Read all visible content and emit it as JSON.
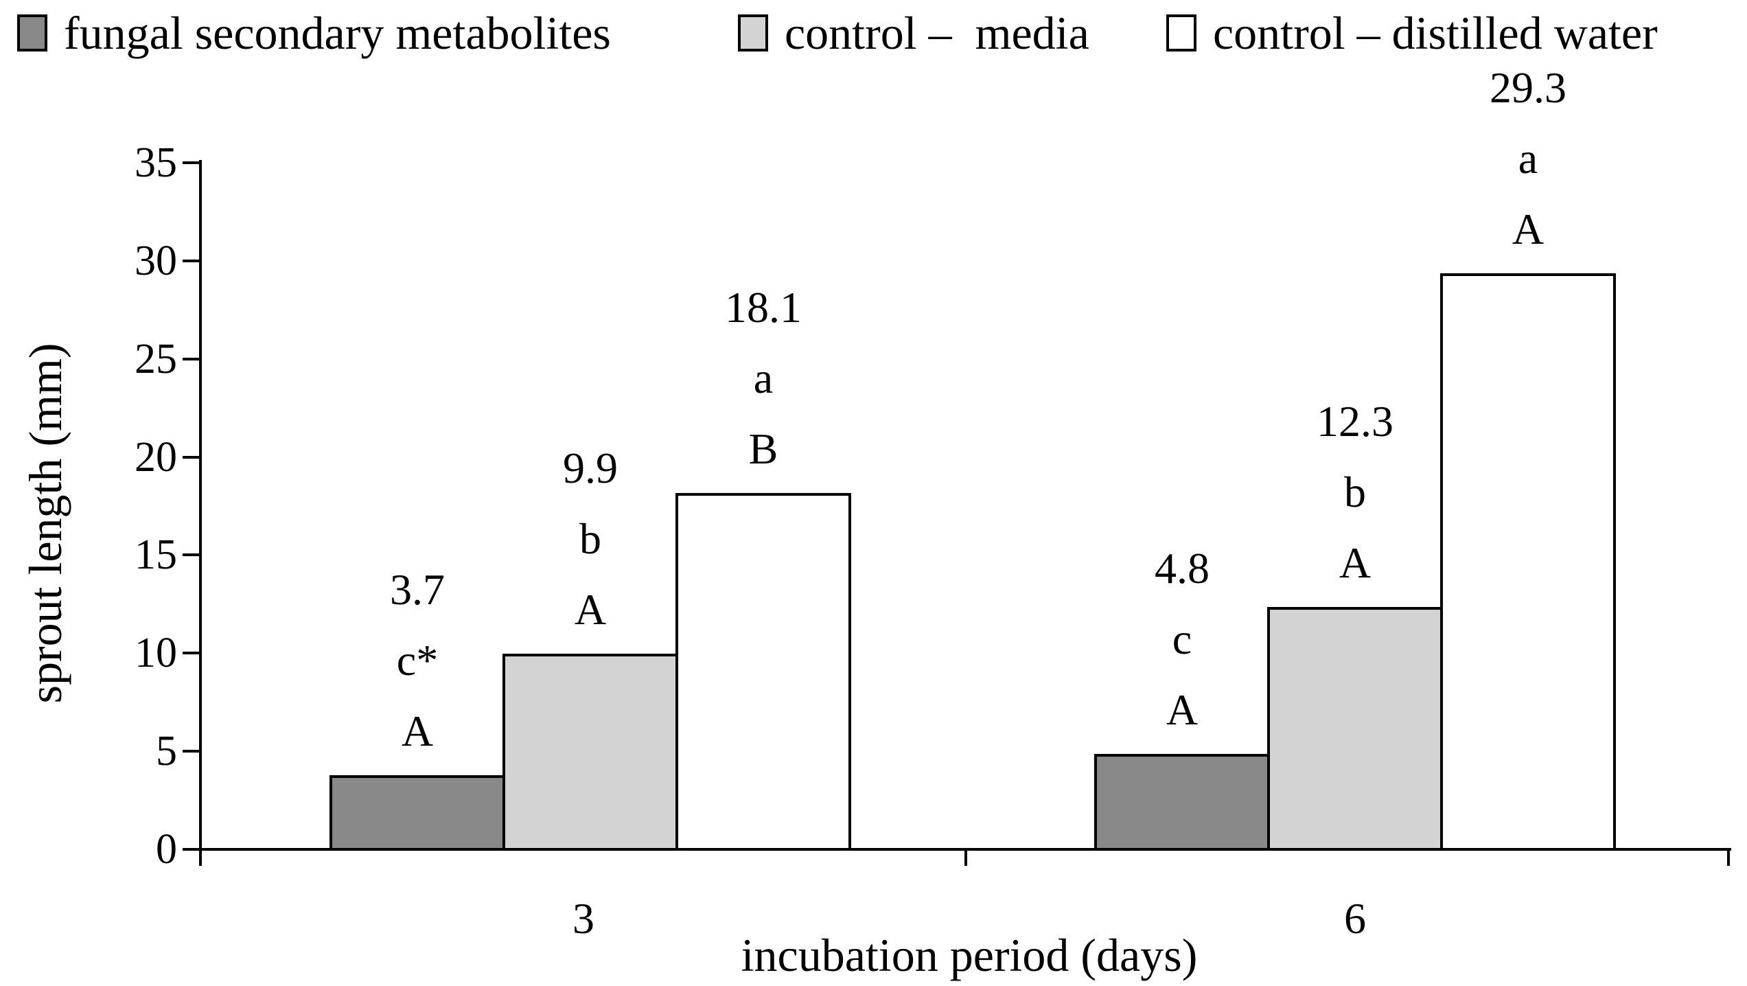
{
  "legend": {
    "items": [
      {
        "label": "fungal secondary metabolites",
        "color": "#898989"
      },
      {
        "label": "control –  media",
        "color": "#d3d3d3"
      },
      {
        "label": "control – distilled water",
        "color": "#ffffff"
      }
    ]
  },
  "chart_data": {
    "type": "bar",
    "title": "",
    "xlabel": "incubation period (days)",
    "ylabel": "sprout length (mm)",
    "ylim": [
      0,
      35
    ],
    "ytick_interval": 5,
    "yticks": [
      0,
      5,
      10,
      15,
      20,
      25,
      30,
      35
    ],
    "categories": [
      "3",
      "6"
    ],
    "series": [
      {
        "name": "fungal secondary metabolites",
        "color": "#898989",
        "values": [
          3.7,
          4.8
        ],
        "annotations": [
          [
            "3.7",
            "c*",
            "A"
          ],
          [
            "4.8",
            "c",
            "A"
          ]
        ]
      },
      {
        "name": "control –  media",
        "color": "#d3d3d3",
        "values": [
          9.9,
          12.3
        ],
        "annotations": [
          [
            "9.9",
            "b",
            "A"
          ],
          [
            "12.3",
            "b",
            "A"
          ]
        ]
      },
      {
        "name": "control – distilled water",
        "color": "#ffffff",
        "values": [
          18.1,
          29.3
        ],
        "annotations": [
          [
            "18.1",
            "a",
            "B"
          ],
          [
            "29.3",
            "a",
            "A"
          ]
        ]
      }
    ],
    "grid": false,
    "legend_position": "top",
    "bar_border_color": "#000000",
    "axis_color": "#000000",
    "background_color": "#ffffff"
  }
}
